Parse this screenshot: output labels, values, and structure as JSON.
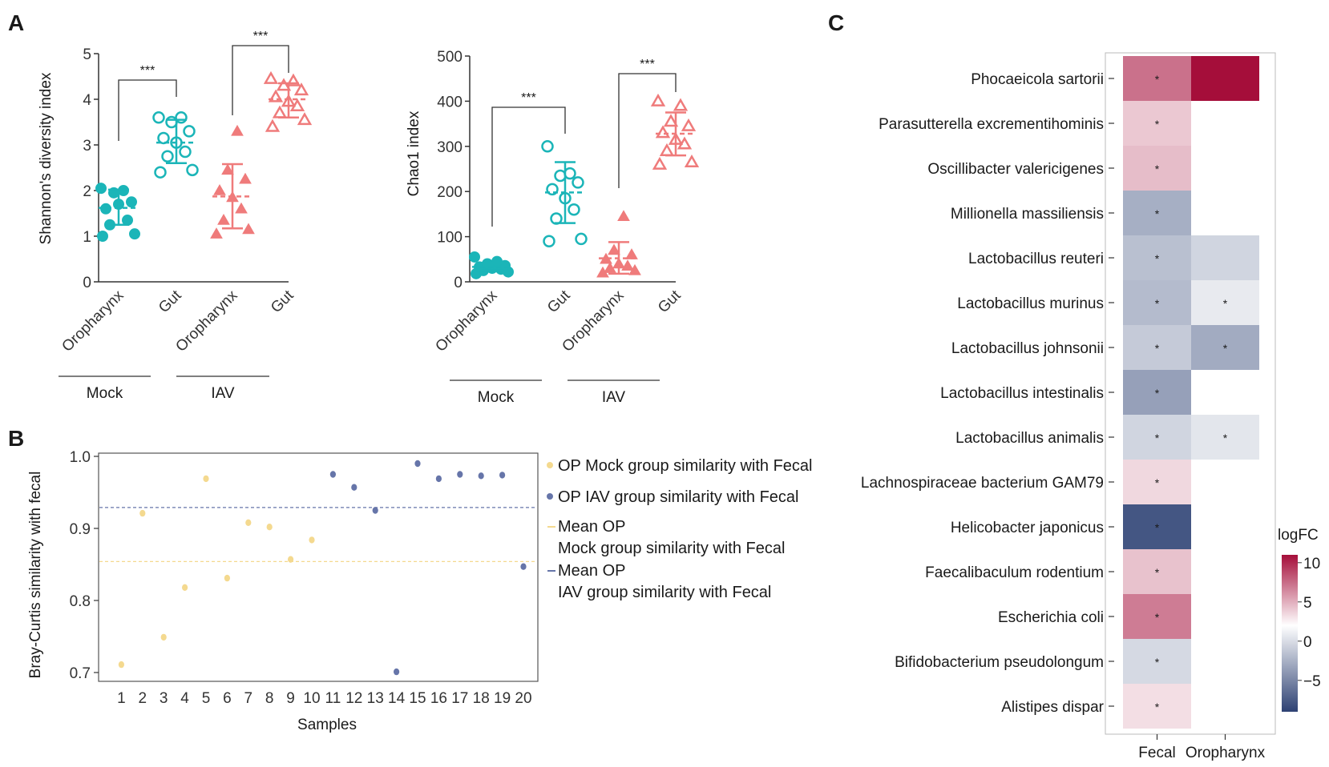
{
  "panels": {
    "a": "A",
    "b": "B",
    "c": "C"
  },
  "colors": {
    "mock": "#1bb5b8",
    "iav": "#ef7b7b",
    "op_mock": "#f4d98f",
    "op_iav": "#6675a9",
    "axis": "#333333",
    "neg": "#2d4173",
    "pos": "#a50e3a",
    "mid": "#ffffff"
  },
  "chart_data": [
    {
      "type": "scatter",
      "id": "shannon",
      "ylabel": "Shannon's diversity index",
      "ylim": [
        0,
        5
      ],
      "yticks": [
        "0",
        "1",
        "2",
        "3",
        "4",
        "5"
      ],
      "groups": [
        {
          "label": "Oropharynx",
          "condition": "Mock",
          "marker": "circle-filled",
          "color": "#1bb5b8",
          "values": [
            1.0,
            1.05,
            1.25,
            1.35,
            1.7,
            1.6,
            1.75,
            1.95,
            2.0,
            2.05
          ],
          "mean": 1.62,
          "sd_low": 1.25,
          "sd_high": 2.02
        },
        {
          "label": "Gut",
          "condition": "Mock",
          "marker": "circle-open",
          "color": "#1bb5b8",
          "values": [
            2.4,
            2.45,
            2.75,
            2.85,
            3.05,
            3.15,
            3.3,
            3.5,
            3.6,
            3.6
          ],
          "mean": 3.05,
          "sd_low": 2.6,
          "sd_high": 3.55
        },
        {
          "label": "Oropharynx",
          "condition": "IAV",
          "marker": "triangle-filled",
          "color": "#ef7b7b",
          "values": [
            1.05,
            1.15,
            1.35,
            1.6,
            1.85,
            2.0,
            2.25,
            2.45,
            3.3
          ],
          "mean": 1.87,
          "sd_low": 1.17,
          "sd_high": 2.58
        },
        {
          "label": "Gut",
          "condition": "IAV",
          "marker": "triangle-open",
          "color": "#ef7b7b",
          "values": [
            3.4,
            3.55,
            3.7,
            3.85,
            3.95,
            4.05,
            4.2,
            4.3,
            4.4,
            4.45
          ],
          "mean": 4.0,
          "sd_low": 3.6,
          "sd_high": 4.35
        }
      ],
      "brackets": [
        {
          "from": 0,
          "to": 1,
          "label": "***"
        },
        {
          "from": 2,
          "to": 3,
          "label": "***"
        }
      ],
      "condition_labels": [
        "Mock",
        "IAV"
      ]
    },
    {
      "type": "scatter",
      "id": "chao1",
      "ylabel": "Chao1 index",
      "ylim": [
        0,
        500
      ],
      "yticks": [
        "0",
        "100",
        "200",
        "300",
        "400",
        "500"
      ],
      "groups": [
        {
          "label": "Oropharynx",
          "condition": "Mock",
          "marker": "circle-filled",
          "color": "#1bb5b8",
          "values": [
            18,
            22,
            25,
            28,
            30,
            33,
            36,
            40,
            45,
            55
          ],
          "mean": 33,
          "sd_low": 25,
          "sd_high": 42
        },
        {
          "label": "Gut",
          "condition": "Mock",
          "marker": "circle-open",
          "color": "#1bb5b8",
          "values": [
            90,
            95,
            140,
            160,
            185,
            205,
            220,
            235,
            240,
            300
          ],
          "mean": 198,
          "sd_low": 130,
          "sd_high": 265
        },
        {
          "label": "Oropharynx",
          "condition": "IAV",
          "marker": "triangle-filled",
          "color": "#ef7b7b",
          "values": [
            20,
            25,
            30,
            35,
            40,
            50,
            60,
            70,
            145
          ],
          "mean": 52,
          "sd_low": 18,
          "sd_high": 88
        },
        {
          "label": "Gut",
          "condition": "IAV",
          "marker": "triangle-open",
          "color": "#ef7b7b",
          "values": [
            260,
            265,
            290,
            305,
            315,
            330,
            345,
            355,
            390,
            400
          ],
          "mean": 328,
          "sd_low": 280,
          "sd_high": 375
        }
      ],
      "brackets": [
        {
          "from": 0,
          "to": 1,
          "label": "***"
        },
        {
          "from": 2,
          "to": 3,
          "label": "***"
        }
      ],
      "condition_labels": [
        "Mock",
        "IAV"
      ]
    },
    {
      "type": "scatter",
      "id": "braycurtis",
      "xlabel": "Samples",
      "ylabel": "Bray-Curtis similarity with fecal",
      "xlim": [
        0,
        20.5
      ],
      "ylim": [
        0.69,
        1.0
      ],
      "yticks": [
        0.7,
        0.8,
        0.9,
        1.0
      ],
      "ytick_labels": [
        "0.7",
        "0.8",
        "0.9",
        "1.0"
      ],
      "x": [
        1,
        2,
        3,
        4,
        5,
        6,
        7,
        8,
        9,
        10,
        11,
        12,
        13,
        14,
        15,
        16,
        17,
        18,
        19,
        20
      ],
      "xtick_labels": [
        "1",
        "2",
        "3",
        "4",
        "5",
        "6",
        "7",
        "8",
        "9",
        "10",
        "11",
        "12",
        "13",
        "14",
        "15",
        "16",
        "17",
        "18",
        "19",
        "20"
      ],
      "series": [
        {
          "name": "OP Mock group similarity with Fecal",
          "color": "#f4d98f",
          "points": [
            [
              1,
              0.711
            ],
            [
              2,
              0.921
            ],
            [
              3,
              0.749
            ],
            [
              4,
              0.818
            ],
            [
              5,
              0.969
            ],
            [
              6,
              0.831
            ],
            [
              7,
              0.908
            ],
            [
              8,
              0.902
            ],
            [
              9,
              0.857
            ],
            [
              10,
              0.884
            ]
          ]
        },
        {
          "name": "OP IAV group similarity with Fecal",
          "color": "#6675a9",
          "points": [
            [
              11,
              0.975
            ],
            [
              12,
              0.957
            ],
            [
              13,
              0.925
            ],
            [
              14,
              0.701
            ],
            [
              15,
              0.99
            ],
            [
              16,
              0.969
            ],
            [
              17,
              0.975
            ],
            [
              18,
              0.973
            ],
            [
              19,
              0.974
            ],
            [
              20,
              0.847
            ]
          ]
        }
      ],
      "mean_lines": [
        {
          "name_line1": "Mean OP",
          "name_line2": "Mock group similarity with Fecal",
          "value": 0.854,
          "color": "#f4d98f"
        },
        {
          "name_line1": "Mean OP",
          "name_line2": "IAV group similarity with Fecal",
          "value": 0.929,
          "color": "#6675a9"
        }
      ]
    },
    {
      "type": "heatmap",
      "id": "logfc",
      "columns": [
        "Fecal",
        "Oropharynx"
      ],
      "rows": [
        "Phocaeicola sartorii",
        "Parasutterella excrementihominis",
        "Oscillibacter valericigenes",
        "Millionella massiliensis",
        "Lactobacillus reuteri",
        "Lactobacillus murinus",
        "Lactobacillus johnsonii",
        "Lactobacillus intestinalis",
        "Lactobacillus animalis",
        "Lachnospiraceae bacterium GAM79",
        "Helicobacter japonicus",
        "Faecalibaculum rodentium",
        "Escherichia coli",
        "Bifidobacterium pseudolongum",
        "Alistipes dispar"
      ],
      "values": [
        [
          6.5,
          11.0
        ],
        [
          2.5,
          null
        ],
        [
          3.0,
          null
        ],
        [
          -3.8,
          null
        ],
        [
          -3.0,
          -2.0
        ],
        [
          -3.2,
          -1.0
        ],
        [
          -2.5,
          -4.0
        ],
        [
          -4.5,
          null
        ],
        [
          -2.0,
          -1.2
        ],
        [
          1.8,
          null
        ],
        [
          -8.0,
          null
        ],
        [
          2.8,
          null
        ],
        [
          6.0,
          null
        ],
        [
          -1.8,
          null
        ],
        [
          1.5,
          null
        ]
      ],
      "significance": [
        [
          "*",
          ""
        ],
        [
          "*",
          ""
        ],
        [
          "*",
          ""
        ],
        [
          "*",
          ""
        ],
        [
          "*",
          ""
        ],
        [
          "*",
          "*"
        ],
        [
          "*",
          "*"
        ],
        [
          "*",
          ""
        ],
        [
          "*",
          "*"
        ],
        [
          "*",
          ""
        ],
        [
          "*",
          ""
        ],
        [
          "*",
          ""
        ],
        [
          "*",
          ""
        ],
        [
          "*",
          ""
        ],
        [
          "*",
          ""
        ]
      ],
      "legend_title": "logFC",
      "legend_ticks": [
        10,
        5,
        0,
        -5
      ],
      "legend_tick_labels": [
        "10",
        "5",
        "0",
        "−5"
      ],
      "color_range": [
        -9,
        11
      ]
    }
  ]
}
